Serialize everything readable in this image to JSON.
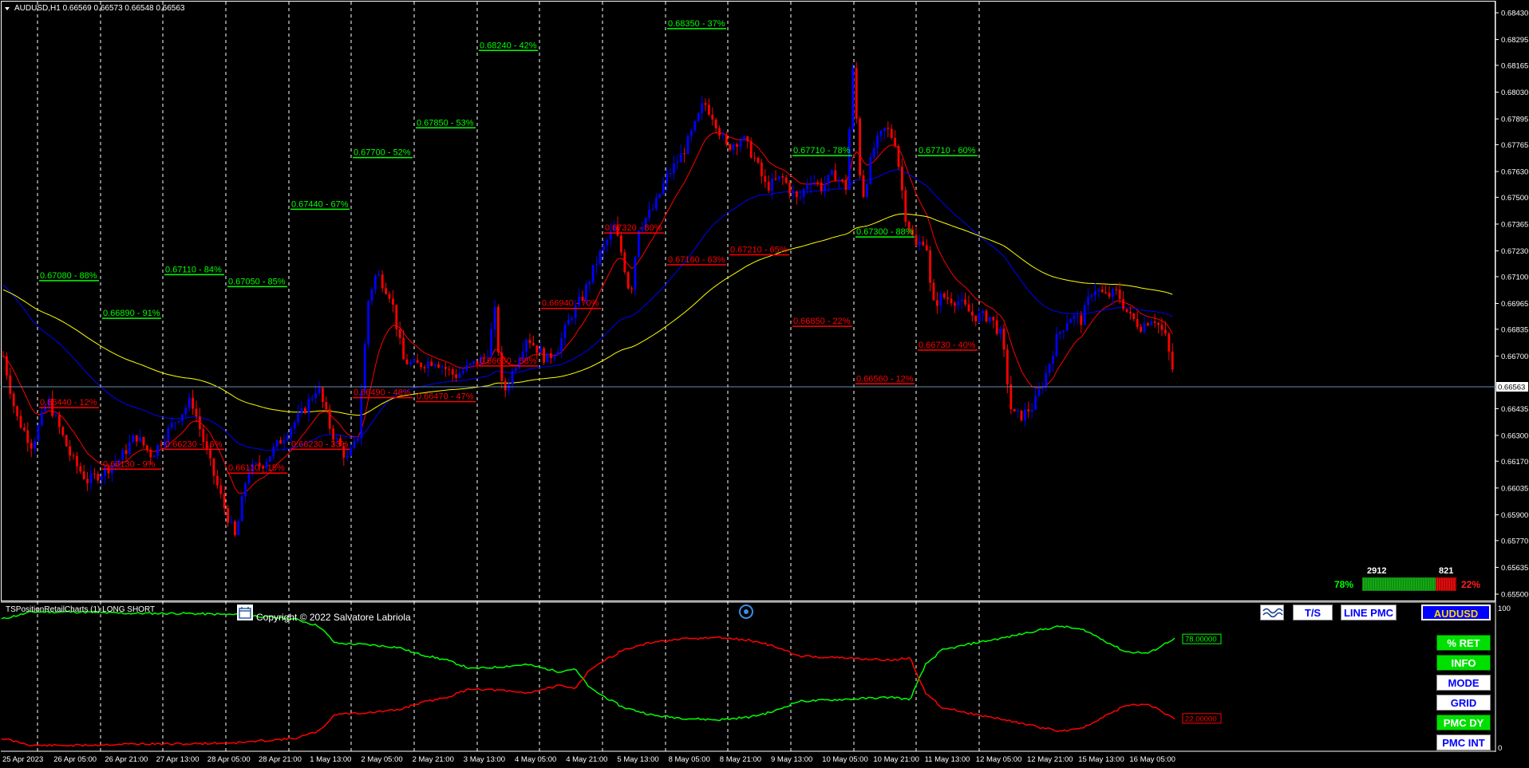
{
  "header": {
    "symbol_line": "AUDUSD,H1  0.66569 0.66573 0.66548 0.66563",
    "indicator_name": "TSPositionRetailCharts (1) LONG SHORT",
    "copyright": "Copyright © 2022 Salvatore Labriola"
  },
  "colors": {
    "background": "#000000",
    "bull_candle": "#0000ff",
    "bear_candle": "#ff0000",
    "long_label": "#00ff00",
    "short_label": "#ff0000",
    "ma_fast": "#ff0000",
    "ma_mid": "#0000ff",
    "ma_slow": "#ffff00",
    "grid": "#ffffff"
  },
  "price_axis": {
    "labels": [
      "0.68430",
      "0.68295",
      "0.68165",
      "0.68030",
      "0.67895",
      "0.67765",
      "0.67630",
      "0.67500",
      "0.67365",
      "0.67230",
      "0.67100",
      "0.66965",
      "0.66835",
      "0.66700",
      "0.66563",
      "0.66435",
      "0.66300",
      "0.66170",
      "0.66035",
      "0.65900",
      "0.65770",
      "0.65635",
      "0.65500"
    ],
    "current_price": "0.66563"
  },
  "sub_axis": {
    "top": "100",
    "bottom": "0"
  },
  "time_axis": [
    "25 Apr 2023",
    "26 Apr 05:00",
    "26 Apr 21:00",
    "27 Apr 13:00",
    "28 Apr 05:00",
    "28 Apr 21:00",
    "1 May 13:00",
    "2 May 05:00",
    "2 May 21:00",
    "3 May 13:00",
    "4 May 05:00",
    "4 May 21:00",
    "5 May 13:00",
    "8 May 05:00",
    "8 May 21:00",
    "9 May 13:00",
    "10 May 05:00",
    "10 May 21:00",
    "11 May 13:00",
    "12 May 05:00",
    "12 May 21:00",
    "15 May 13:00",
    "16 May 05:00"
  ],
  "levels": [
    {
      "text": "0.67080 - 88%",
      "type": "long",
      "price": 0.6708,
      "day": 0
    },
    {
      "text": "0.66440 - 12%",
      "type": "short",
      "price": 0.6644,
      "day": 0
    },
    {
      "text": "0.66890 - 91%",
      "type": "long",
      "price": 0.6689,
      "day": 1
    },
    {
      "text": "0.66130 - 9%",
      "type": "short",
      "price": 0.6613,
      "day": 1
    },
    {
      "text": "0.67110 - 84%",
      "type": "long",
      "price": 0.6711,
      "day": 2
    },
    {
      "text": "0.66230 - 16%",
      "type": "short",
      "price": 0.6623,
      "day": 2
    },
    {
      "text": "0.67050 - 85%",
      "type": "long",
      "price": 0.6705,
      "day": 3
    },
    {
      "text": "0.66110 - 15%",
      "type": "short",
      "price": 0.6611,
      "day": 3
    },
    {
      "text": "0.67440 - 67%",
      "type": "long",
      "price": 0.6744,
      "day": 4
    },
    {
      "text": "0.66230 - 33%",
      "type": "short",
      "price": 0.6623,
      "day": 4
    },
    {
      "text": "0.67700 - 52%",
      "type": "long",
      "price": 0.677,
      "day": 5
    },
    {
      "text": "0.66490 - 48%",
      "type": "short",
      "price": 0.6649,
      "day": 5
    },
    {
      "text": "0.67850 - 53%",
      "type": "long",
      "price": 0.6785,
      "day": 6
    },
    {
      "text": "0.66470 - 47%",
      "type": "short",
      "price": 0.6647,
      "day": 6
    },
    {
      "text": "0.68240 - 42%",
      "type": "long",
      "price": 0.6824,
      "day": 7
    },
    {
      "text": "0.66650 - 58%",
      "type": "short",
      "price": 0.6665,
      "day": 7
    },
    {
      "text": "0.66940 - 70%",
      "type": "short",
      "price": 0.6694,
      "day": 8
    },
    {
      "text": "0.67320 - 80%",
      "type": "short",
      "price": 0.6732,
      "day": 9
    },
    {
      "text": "0.68350 - 37%",
      "type": "long",
      "price": 0.6835,
      "day": 10
    },
    {
      "text": "0.67160 - 63%",
      "type": "short",
      "price": 0.6716,
      "day": 10
    },
    {
      "text": "0.67210 - 65%",
      "type": "short",
      "price": 0.6721,
      "day": 11
    },
    {
      "text": "0.67710 - 78%",
      "type": "long",
      "price": 0.6771,
      "day": 12
    },
    {
      "text": "0.66850 - 22%",
      "type": "short",
      "price": 0.6685,
      "day": 12
    },
    {
      "text": "0.67300 - 88%",
      "type": "long",
      "price": 0.673,
      "day": 13
    },
    {
      "text": "0.66560 - 12%",
      "type": "short",
      "price": 0.6656,
      "day": 13
    },
    {
      "text": "0.67710 - 60%",
      "type": "long",
      "price": 0.6771,
      "day": 14
    },
    {
      "text": "0.66730 - 40%",
      "type": "short",
      "price": 0.6673,
      "day": 14
    }
  ],
  "position_meter": {
    "long_count": "2912",
    "short_count": "821",
    "long_pct": "78%",
    "short_pct": "22%",
    "long_fraction": 0.78
  },
  "sub_values": {
    "long_value": "78.00000",
    "short_value": "22.00000"
  },
  "toolbar": {
    "ts_label": "T/S",
    "line_pmc_label": "LINE PMC",
    "symbol_label": "AUDUSD"
  },
  "side_buttons": {
    "ret": "% RET",
    "info": "INFO",
    "mode": "MODE",
    "grid": "GRID",
    "pmc_dy": "PMC DY",
    "pmc_int": "PMC INT"
  },
  "icons": [
    "dropdown-triangle-icon",
    "calendar-icon",
    "target-icon",
    "wave-icon"
  ]
}
